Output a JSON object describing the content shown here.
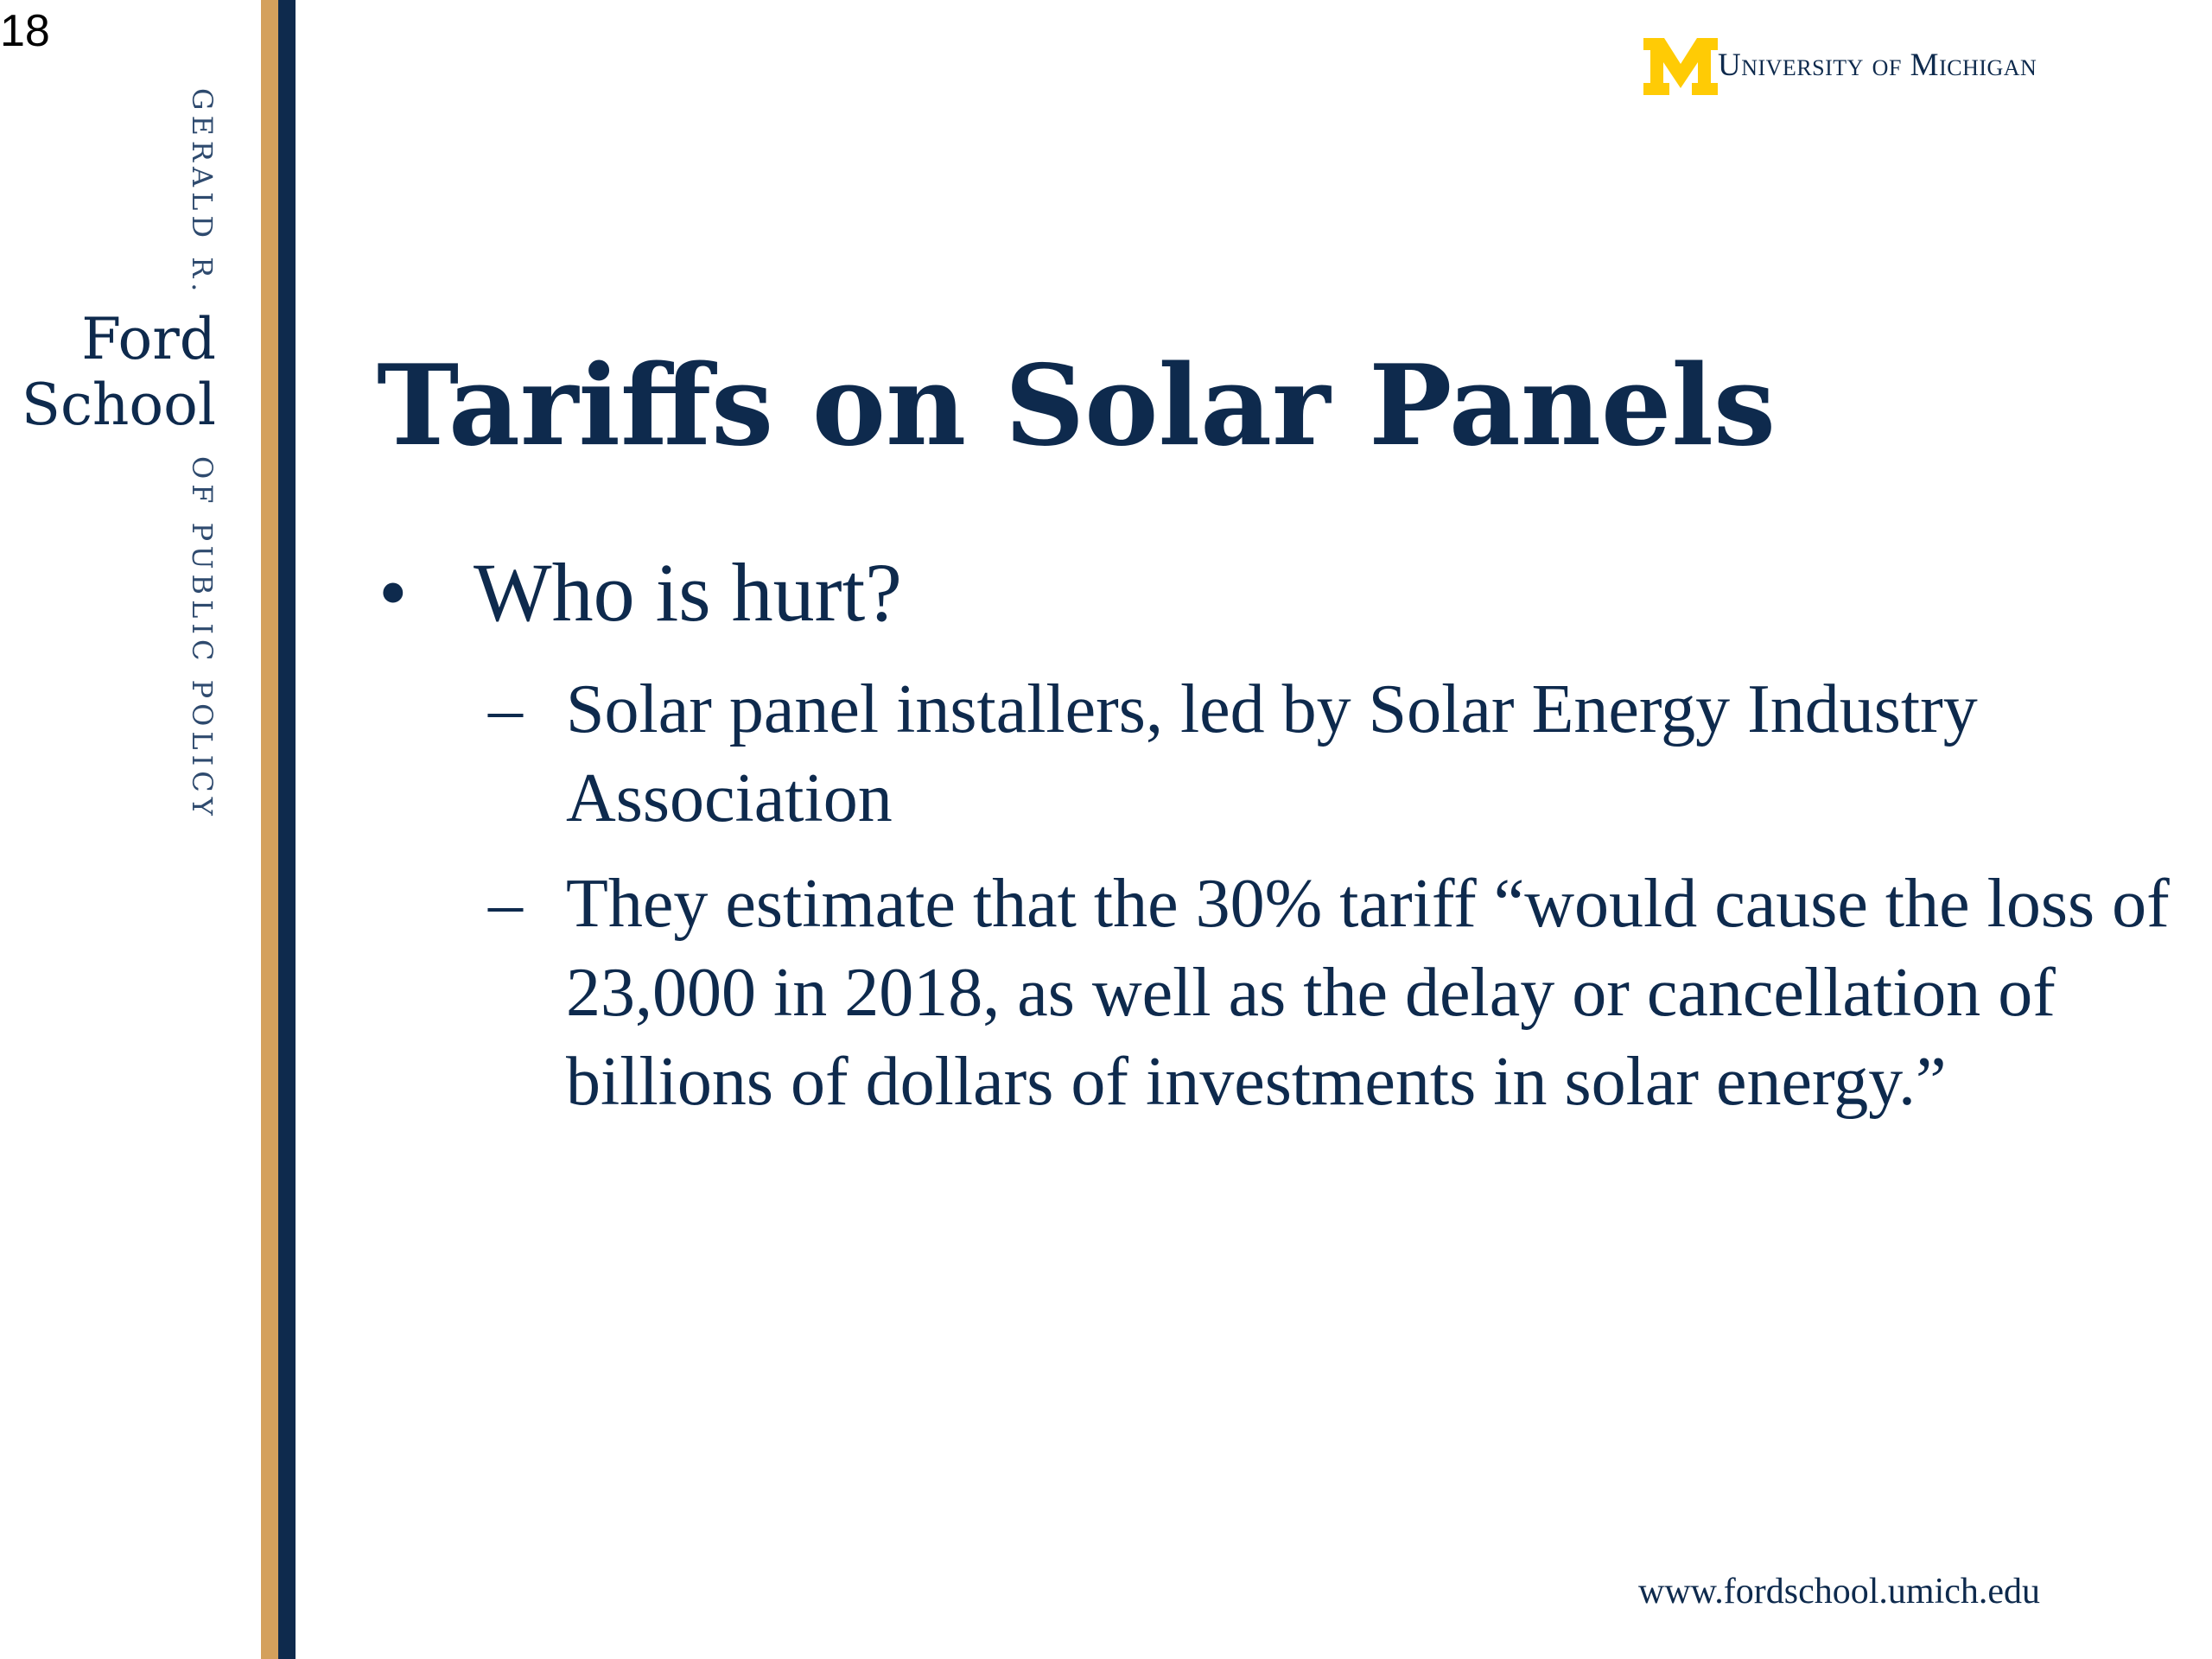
{
  "slide_number": "18",
  "sidebar": {
    "vertical_top": "GERALD R.",
    "ford": "Ford",
    "school": "School",
    "vertical_bottom": "OF PUBLIC POLICY"
  },
  "header": {
    "logo_letter": "M",
    "institution": "University of Michigan",
    "logo_color": "#ffcb05"
  },
  "title": "Tariffs on Solar Panels",
  "bullet": {
    "marker": "•",
    "text": "Who is hurt?"
  },
  "sub_bullets": [
    {
      "marker": "–",
      "text": "Solar panel installers, led by Solar Energy Industry Association"
    },
    {
      "marker": "–",
      "text": "They estimate that the 30% tariff “would cause the loss of 23,000 in 2018, as well as the delay or cancellation of billions of dollars of investments in solar energy.”"
    }
  ],
  "footer": {
    "url": "www.fordschool.umich.edu"
  },
  "colors": {
    "navy": "#0e2a4d",
    "gold": "#d4a05c",
    "maize": "#ffcb05"
  }
}
